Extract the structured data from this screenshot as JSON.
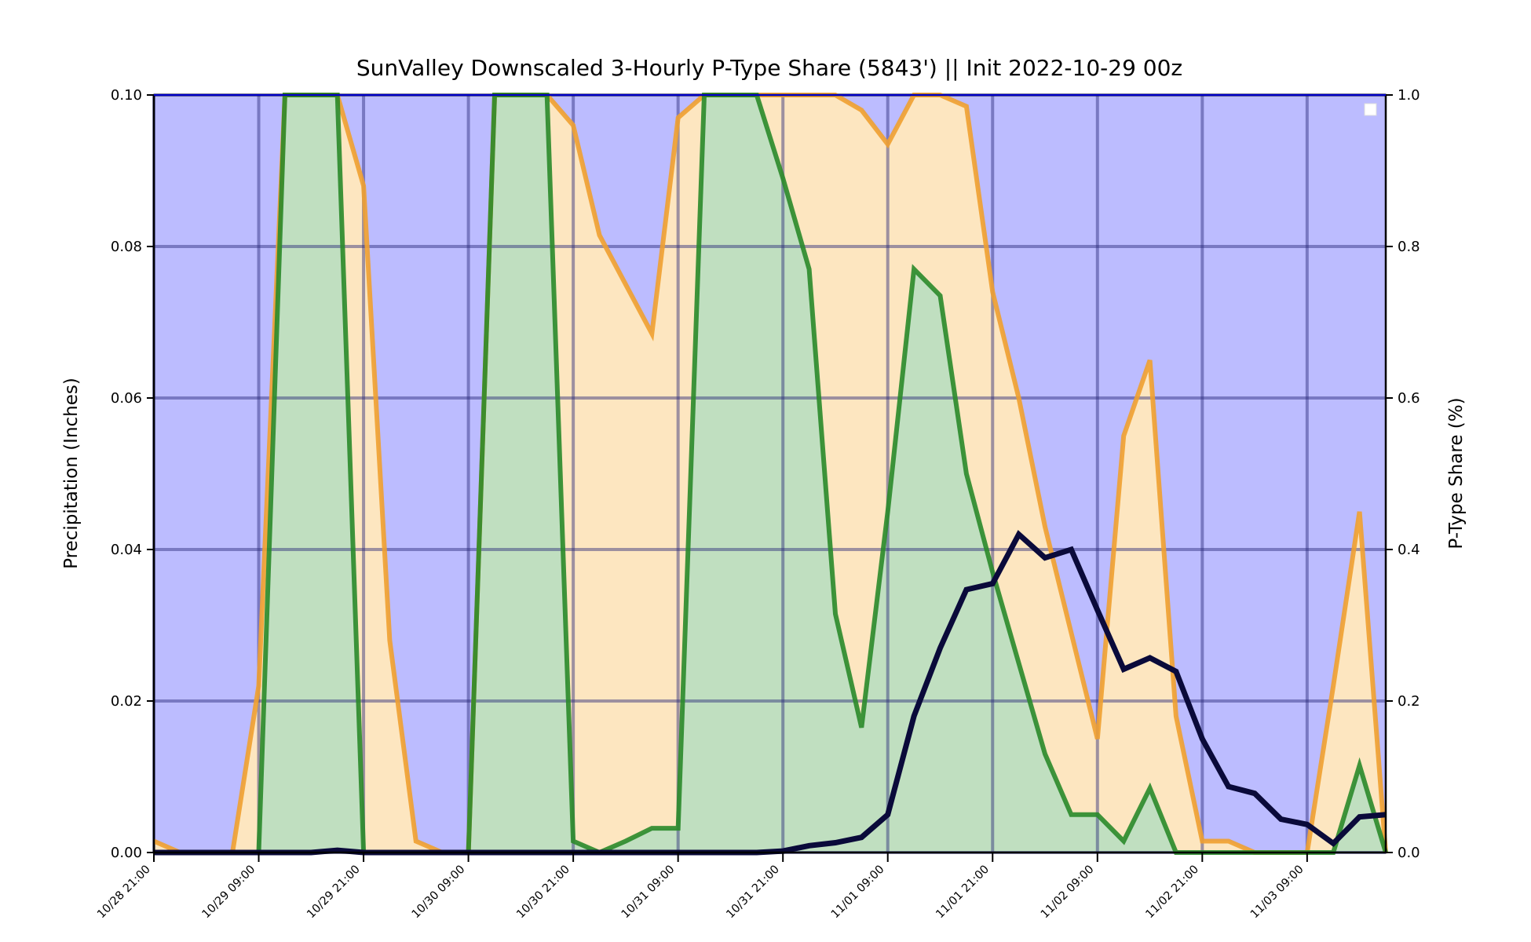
{
  "chart_data": {
    "type": "area",
    "title": "SunValley Downscaled 3-Hourly P-Type Share (5843') || Init 2022-10-29 00z",
    "ylabel": "Precipitation (Inches)",
    "y2label": "P-Type Share (%)",
    "xlabel": "",
    "ylim": [
      0,
      0.1
    ],
    "y2lim": [
      0,
      1.0
    ],
    "yticks": [
      "0.00",
      "0.02",
      "0.04",
      "0.06",
      "0.08",
      "0.10"
    ],
    "y2ticks": [
      "0.0",
      "0.2",
      "0.4",
      "0.6",
      "0.8",
      "1.0"
    ],
    "xticks": [
      "10/28 21:00",
      "10/29 09:00",
      "10/29 21:00",
      "10/30 09:00",
      "10/30 21:00",
      "10/31 09:00",
      "10/31 21:00",
      "11/01 09:00",
      "11/01 21:00",
      "11/02 09:00",
      "11/02 21:00",
      "11/03 09:00"
    ],
    "x": [
      "10/28 21:00",
      "10/29 00:00",
      "10/29 03:00",
      "10/29 06:00",
      "10/29 09:00",
      "10/29 12:00",
      "10/29 15:00",
      "10/29 18:00",
      "10/29 21:00",
      "10/30 00:00",
      "10/30 03:00",
      "10/30 06:00",
      "10/30 09:00",
      "10/30 12:00",
      "10/30 15:00",
      "10/30 18:00",
      "10/30 21:00",
      "10/31 00:00",
      "10/31 03:00",
      "10/31 06:00",
      "10/31 09:00",
      "10/31 12:00",
      "10/31 15:00",
      "10/31 18:00",
      "10/31 21:00",
      "11/01 00:00",
      "11/01 03:00",
      "11/01 06:00",
      "11/01 09:00",
      "11/01 12:00",
      "11/01 15:00",
      "11/01 18:00",
      "11/01 21:00",
      "11/02 00:00",
      "11/02 03:00",
      "11/02 06:00",
      "11/02 09:00",
      "11/02 12:00",
      "11/02 15:00",
      "11/02 18:00",
      "11/02 21:00",
      "11/03 00:00",
      "11/03 03:00",
      "11/03 06:00",
      "11/03 09:00",
      "11/03 12:00",
      "11/03 15:00",
      "11/03 18:00"
    ],
    "legend": "upper right (empty)",
    "grid": true,
    "background_color": "#bcbcff",
    "series": [
      {
        "axis": "right",
        "color": "#f0a030",
        "fill": "#fde6c0",
        "values": [
          0.015,
          0.0,
          0.0,
          0.0,
          0.22,
          1.0,
          1.0,
          1.0,
          0.88,
          0.28,
          0.015,
          0.0,
          0.0,
          1.0,
          1.0,
          1.0,
          0.96,
          0.815,
          0.75,
          0.685,
          0.97,
          1.0,
          1.0,
          1.0,
          1.0,
          1.0,
          1.0,
          0.98,
          0.935,
          1.0,
          1.0,
          0.985,
          0.74,
          0.6,
          0.43,
          0.29,
          0.15,
          0.55,
          0.65,
          0.18,
          0.015,
          0.015,
          0.0,
          0.0,
          0.0,
          0.22,
          0.45,
          0.0
        ]
      },
      {
        "axis": "right",
        "color": "#2a8a2a",
        "fill": "#c0dfc0",
        "values": [
          0.0,
          0.0,
          0.0,
          0.0,
          0.0,
          1.0,
          1.0,
          1.0,
          0.0,
          0.0,
          0.0,
          0.0,
          0.0,
          1.0,
          1.0,
          1.0,
          0.015,
          0.0,
          0.015,
          0.032,
          0.032,
          1.0,
          1.0,
          1.0,
          0.89,
          0.77,
          0.315,
          0.165,
          0.45,
          0.77,
          0.735,
          0.5,
          0.37,
          0.25,
          0.13,
          0.05,
          0.05,
          0.015,
          0.085,
          0.0,
          0.0,
          0.0,
          0.0,
          0.0,
          0.0,
          0.0,
          0.115,
          0.0
        ]
      },
      {
        "axis": "left",
        "color": "#0a0a3a",
        "values": [
          0.0,
          0.0,
          0.0,
          0.0,
          0.0,
          0.0,
          0.0,
          0.0003,
          0.0,
          0.0,
          0.0,
          0.0,
          0.0,
          0.0,
          0.0,
          0.0,
          0.0,
          0.0,
          0.0,
          0.0,
          0.0,
          0.0,
          0.0,
          0.0,
          0.0002,
          0.0009,
          0.0013,
          0.002,
          0.005,
          0.018,
          0.027,
          0.0347,
          0.0355,
          0.042,
          0.0389,
          0.04,
          0.032,
          0.0242,
          0.0257,
          0.0239,
          0.015,
          0.0087,
          0.0078,
          0.0044,
          0.0037,
          0.0012,
          0.0047,
          0.005
        ]
      }
    ]
  }
}
